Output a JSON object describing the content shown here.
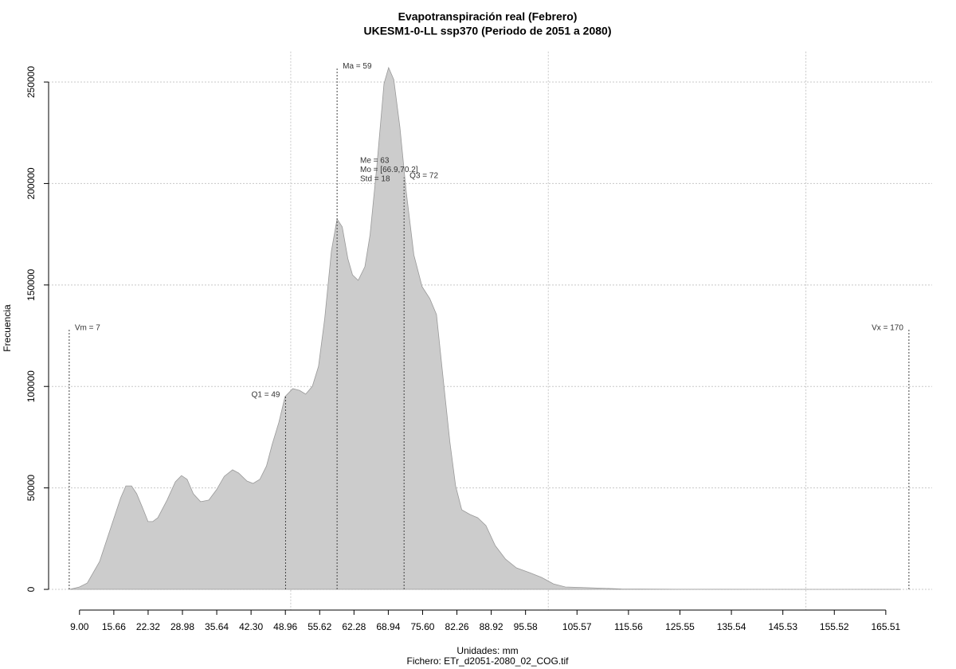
{
  "chart_data": {
    "type": "area",
    "title": "Evapotranspiración real (Febrero)",
    "subtitle": "UKESM1-0-LL ssp370 (Periodo de 2051 a 2080)",
    "xlabel": "Unidades: mm",
    "caption": "Fichero: ETr_d2051-2080_02_COG.tif",
    "ylabel": "Frecuencia",
    "color": "#cccccc",
    "grid": true,
    "x": [
      7.1,
      9,
      10.5,
      12.9,
      15.2,
      17.0,
      18.0,
      19.1,
      20.1,
      21.4,
      22.3,
      23.2,
      24.2,
      26.0,
      27.6,
      28.8,
      29.9,
      31.1,
      32.5,
      34.1,
      35.6,
      37.1,
      38.7,
      39.9,
      41.5,
      42.7,
      44.0,
      45.3,
      46.4,
      47.7,
      48.9,
      50.4,
      51.7,
      52.9,
      54.2,
      55.4,
      56.6,
      57.9,
      59.0,
      60.0,
      61.1,
      62.0,
      63.1,
      64.4,
      65.4,
      66.7,
      68.1,
      69.0,
      70.0,
      71.2,
      72.4,
      73.9,
      75.5,
      77.0,
      78.3,
      79.5,
      80.9,
      82.0,
      83.2,
      84.8,
      86.3,
      87.9,
      89.7,
      91.7,
      93.8,
      96.4,
      98.7,
      101.0,
      103.3,
      108.0,
      114.2,
      125,
      148.2,
      168.3
    ],
    "values": [
      0,
      1200,
      3100,
      13700,
      31400,
      45100,
      51000,
      51000,
      47100,
      39200,
      33400,
      33400,
      35300,
      44000,
      53000,
      56100,
      54200,
      47100,
      43200,
      44000,
      49100,
      55700,
      58900,
      57300,
      53400,
      52200,
      54200,
      60800,
      71400,
      82400,
      95000,
      98900,
      98100,
      96200,
      100100,
      109900,
      133500,
      166800,
      182500,
      178600,
      162900,
      155000,
      152300,
      159000,
      174700,
      208000,
      249200,
      257100,
      251200,
      227600,
      196300,
      164800,
      149200,
      143300,
      135400,
      106000,
      72600,
      51000,
      39200,
      36900,
      35300,
      31400,
      21600,
      14900,
      10600,
      8200,
      5900,
      2700,
      1200,
      800,
      200,
      50,
      10,
      0
    ],
    "xlim": [
      3,
      174.5
    ],
    "ylim": [
      -10000,
      265000
    ],
    "xticks": [
      {
        "value": 9,
        "label": "9.00"
      },
      {
        "value": 15.66,
        "label": "15.66"
      },
      {
        "value": 22.32,
        "label": "22.32"
      },
      {
        "value": 28.98,
        "label": "28.98"
      },
      {
        "value": 35.64,
        "label": "35.64"
      },
      {
        "value": 42.3,
        "label": "42.30"
      },
      {
        "value": 48.96,
        "label": "48.96"
      },
      {
        "value": 55.62,
        "label": "55.62"
      },
      {
        "value": 62.28,
        "label": "62.28"
      },
      {
        "value": 68.94,
        "label": "68.94"
      },
      {
        "value": 75.6,
        "label": "75.60"
      },
      {
        "value": 82.26,
        "label": "82.26"
      },
      {
        "value": 88.92,
        "label": "88.92"
      },
      {
        "value": 95.58,
        "label": "95.58"
      },
      {
        "value": 105.57,
        "label": "105.57"
      },
      {
        "value": 115.56,
        "label": "115.56"
      },
      {
        "value": 125.55,
        "label": "125.55"
      },
      {
        "value": 135.54,
        "label": "135.54"
      },
      {
        "value": 145.53,
        "label": "145.53"
      },
      {
        "value": 155.52,
        "label": "155.52"
      },
      {
        "value": 165.51,
        "label": "165.51"
      }
    ],
    "xgrid": [
      50,
      100,
      150
    ],
    "yticks": [
      0,
      50000,
      100000,
      150000,
      200000,
      250000
    ],
    "annotations": [
      {
        "label": "Vm = 7",
        "x": 7,
        "y": 128000
      },
      {
        "label": "Vx = 170",
        "x": 170,
        "y": 128000
      },
      {
        "label": "Q1 = 49",
        "x": 49,
        "y": 95000
      },
      {
        "label": "Ma = 59",
        "x": 59,
        "y": 257000
      },
      {
        "label": "Q3 = 72",
        "x": 72,
        "y": 203000
      }
    ],
    "stats_labels": [
      "Me = 63",
      "Mo = [66.9,70.2]",
      "Std = 18"
    ]
  }
}
